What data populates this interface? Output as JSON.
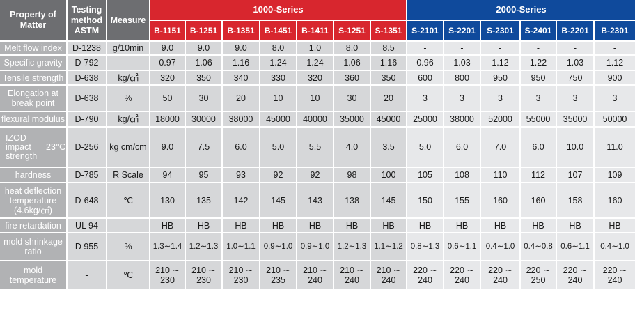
{
  "header": {
    "property": "Property of Matter",
    "testing": "Testing method ASTM",
    "measure": "Measure",
    "series1_title": "1000-Series",
    "series2_title": "2000-Series",
    "series1_codes": [
      "B-1151",
      "B-1251",
      "B-1351",
      "B-1451",
      "B-1411",
      "S-1251",
      "S-1351"
    ],
    "series2_codes": [
      "S-2101",
      "S-2201",
      "S-2301",
      "S-2401",
      "B-2201",
      "B-2301"
    ]
  },
  "rows": [
    {
      "property": "Melt flow index",
      "test": "D-1238",
      "measure": "g/10min",
      "values": [
        "9.0",
        "9.0",
        "9.0",
        "8.0",
        "1.0",
        "8.0",
        "8.5",
        "-",
        "-",
        "-",
        "-",
        "-",
        "-"
      ]
    },
    {
      "property": "Specific gravity",
      "test": "D-792",
      "measure": "-",
      "values": [
        "0.97",
        "1.06",
        "1.16",
        "1.24",
        "1.24",
        "1.06",
        "1.16",
        "0.96",
        "1.03",
        "1.12",
        "1.22",
        "1.03",
        "1.12"
      ]
    },
    {
      "property": "Tensile strength",
      "test": "D-638",
      "measure": "kg/㎠",
      "values": [
        "320",
        "350",
        "340",
        "330",
        "320",
        "360",
        "350",
        "600",
        "800",
        "950",
        "950",
        "750",
        "900"
      ]
    },
    {
      "property": "Elongation at break point",
      "test": "D-638",
      "measure": "%",
      "values": [
        "50",
        "30",
        "20",
        "10",
        "10",
        "30",
        "20",
        "3",
        "3",
        "3",
        "3",
        "3",
        "3"
      ]
    },
    {
      "property": "flexural modulus",
      "test": "D-790",
      "measure": "kg/㎠",
      "values": [
        "18000",
        "30000",
        "38000",
        "45000",
        "40000",
        "35000",
        "45000",
        "25000",
        "38000",
        "52000",
        "55000",
        "35000",
        "50000"
      ]
    },
    {
      "property": "IZOD impact strength",
      "property_sub": "23℃",
      "test": "D-256",
      "measure": "kg cm/cm",
      "values": [
        "9.0",
        "7.5",
        "6.0",
        "5.0",
        "5.5",
        "4.0",
        "3.5",
        "5.0",
        "6.0",
        "7.0",
        "6.0",
        "10.0",
        "11.0"
      ]
    },
    {
      "property": "hardness",
      "test": "D-785",
      "measure": "R Scale",
      "values": [
        "94",
        "95",
        "93",
        "92",
        "92",
        "98",
        "100",
        "105",
        "108",
        "110",
        "112",
        "107",
        "109"
      ]
    },
    {
      "property": "heat deflection temperature (4.6kg/㎠)",
      "test": "D-648",
      "measure": "℃",
      "values": [
        "130",
        "135",
        "142",
        "145",
        "143",
        "138",
        "145",
        "150",
        "155",
        "160",
        "160",
        "158",
        "160"
      ]
    },
    {
      "property": "fire retardation",
      "test": "UL 94",
      "measure": "-",
      "values": [
        "HB",
        "HB",
        "HB",
        "HB",
        "HB",
        "HB",
        "HB",
        "HB",
        "HB",
        "HB",
        "HB",
        "HB",
        "HB"
      ]
    },
    {
      "property": "mold shrinkage ratio",
      "test": "D 955",
      "measure": "%",
      "values": [
        "1.3∼1.4",
        "1.2∼1.3",
        "1.0∼1.1",
        "0.9∼1.0",
        "0.9∼1.0",
        "1.2∼1.3",
        "1.1∼1.2",
        "0.8∼1.3",
        "0.6∼1.1",
        "0.4∼1.0",
        "0.4∼0.8",
        "0.6∼1.1",
        "0.4∼1.0"
      ]
    },
    {
      "property": "mold temperature",
      "test": "-",
      "measure": "℃",
      "values": [
        "210 ∼ 230",
        "210 ∼ 230",
        "210 ∼ 230",
        "210 ∼ 235",
        "210 ∼ 240",
        "210 ∼ 240",
        "210 ∼ 240",
        "220 ∼ 240",
        "220 ∼ 240",
        "220 ∼ 240",
        "220 ∼ 250",
        "220 ∼ 240",
        "220 ∼ 240"
      ]
    }
  ]
}
